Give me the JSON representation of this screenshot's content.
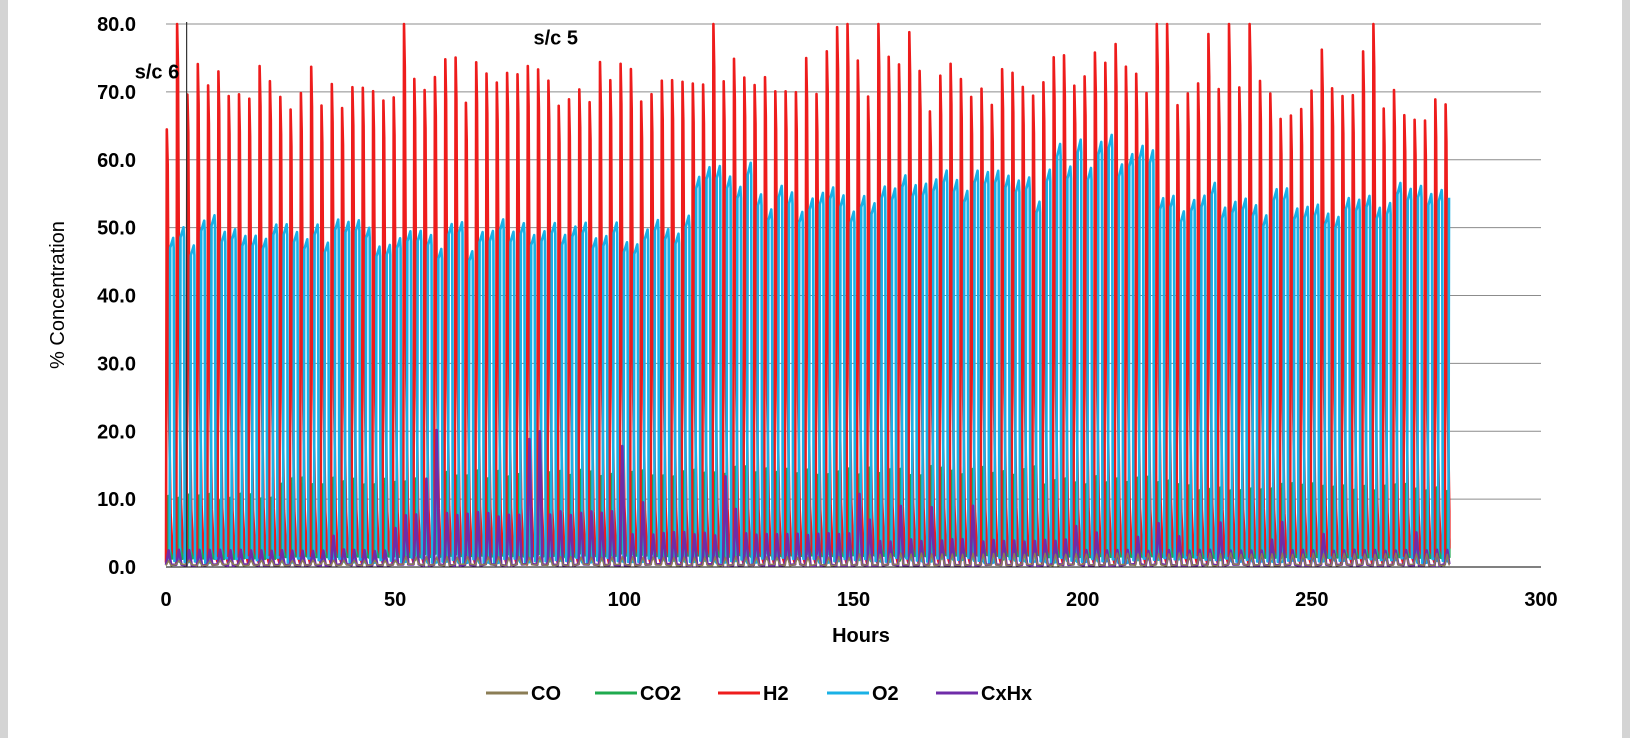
{
  "chart_data": {
    "type": "line",
    "xlabel": "Hours",
    "ylabel": "% Concentration",
    "xlim": [
      0,
      300
    ],
    "ylim": [
      0,
      80
    ],
    "x_ticks": [
      "0",
      "50",
      "100",
      "150",
      "200",
      "250",
      "300"
    ],
    "y_ticks": [
      "0.0",
      "10.0",
      "20.0",
      "30.0",
      "40.0",
      "50.0",
      "60.0",
      "70.0",
      "80.0"
    ],
    "grid": "horizontal",
    "legend_position": "bottom",
    "annotations": [
      {
        "text": "s/c 6",
        "x": 3,
        "y": 72
      },
      {
        "text": "s/c 5",
        "x": 90,
        "y": 77
      }
    ],
    "marker_line_x": 4.5,
    "cycle_period_hours": 2.25,
    "x_end_hours": 280,
    "series": [
      {
        "name": "CO",
        "color": "#8b7d55",
        "baseline": 0.3,
        "peaks": [
          {
            "x_end": 50,
            "peak": 1.0
          },
          {
            "x_end": 150,
            "peak": 1.5
          },
          {
            "x_end": 280,
            "peak": 2.0
          }
        ]
      },
      {
        "name": "CO2",
        "color": "#1faa4e",
        "baseline": 1.5,
        "peaks": [
          {
            "x_end": 25,
            "peak": 10.5
          },
          {
            "x_end": 60,
            "peak": 13.0
          },
          {
            "x_end": 120,
            "peak": 14.0
          },
          {
            "x_end": 190,
            "peak": 14.5
          },
          {
            "x_end": 220,
            "peak": 13.0
          },
          {
            "x_end": 280,
            "peak": 12.0
          }
        ]
      },
      {
        "name": "H2",
        "color": "#ee1c1c",
        "baseline": 0.5,
        "peaks": [
          {
            "x_end": 2,
            "peak": 65.0
          },
          {
            "x_end": 25,
            "peak": 72.0
          },
          {
            "x_end": 60,
            "peak": 72.0
          },
          {
            "x_end": 120,
            "peak": 73.0
          },
          {
            "x_end": 160,
            "peak": 74.0
          },
          {
            "x_end": 190,
            "peak": 72.0
          },
          {
            "x_end": 220,
            "peak": 75.0
          },
          {
            "x_end": 280,
            "peak": 70.0
          }
        ]
      },
      {
        "name": "O2",
        "color": "#1ab1e6",
        "baseline": 1.0,
        "peaks": [
          {
            "x_end": 25,
            "peak": 50.5
          },
          {
            "x_end": 70,
            "peak": 50.0
          },
          {
            "x_end": 115,
            "peak": 51.0
          },
          {
            "x_end": 130,
            "peak": 59.0
          },
          {
            "x_end": 155,
            "peak": 55.5
          },
          {
            "x_end": 190,
            "peak": 57.0
          },
          {
            "x_end": 215,
            "peak": 62.0
          },
          {
            "x_end": 280,
            "peak": 55.0
          }
        ]
      },
      {
        "name": "CxHx",
        "color": "#6f2ca8",
        "baseline": 0.3,
        "peaks": [
          {
            "x_end": 50,
            "peak": 2.5
          },
          {
            "x_end": 100,
            "peak": 8.0
          },
          {
            "x_end": 150,
            "peak": 5.0
          },
          {
            "x_end": 200,
            "peak": 4.0
          },
          {
            "x_end": 280,
            "peak": 2.5
          }
        ]
      }
    ]
  }
}
